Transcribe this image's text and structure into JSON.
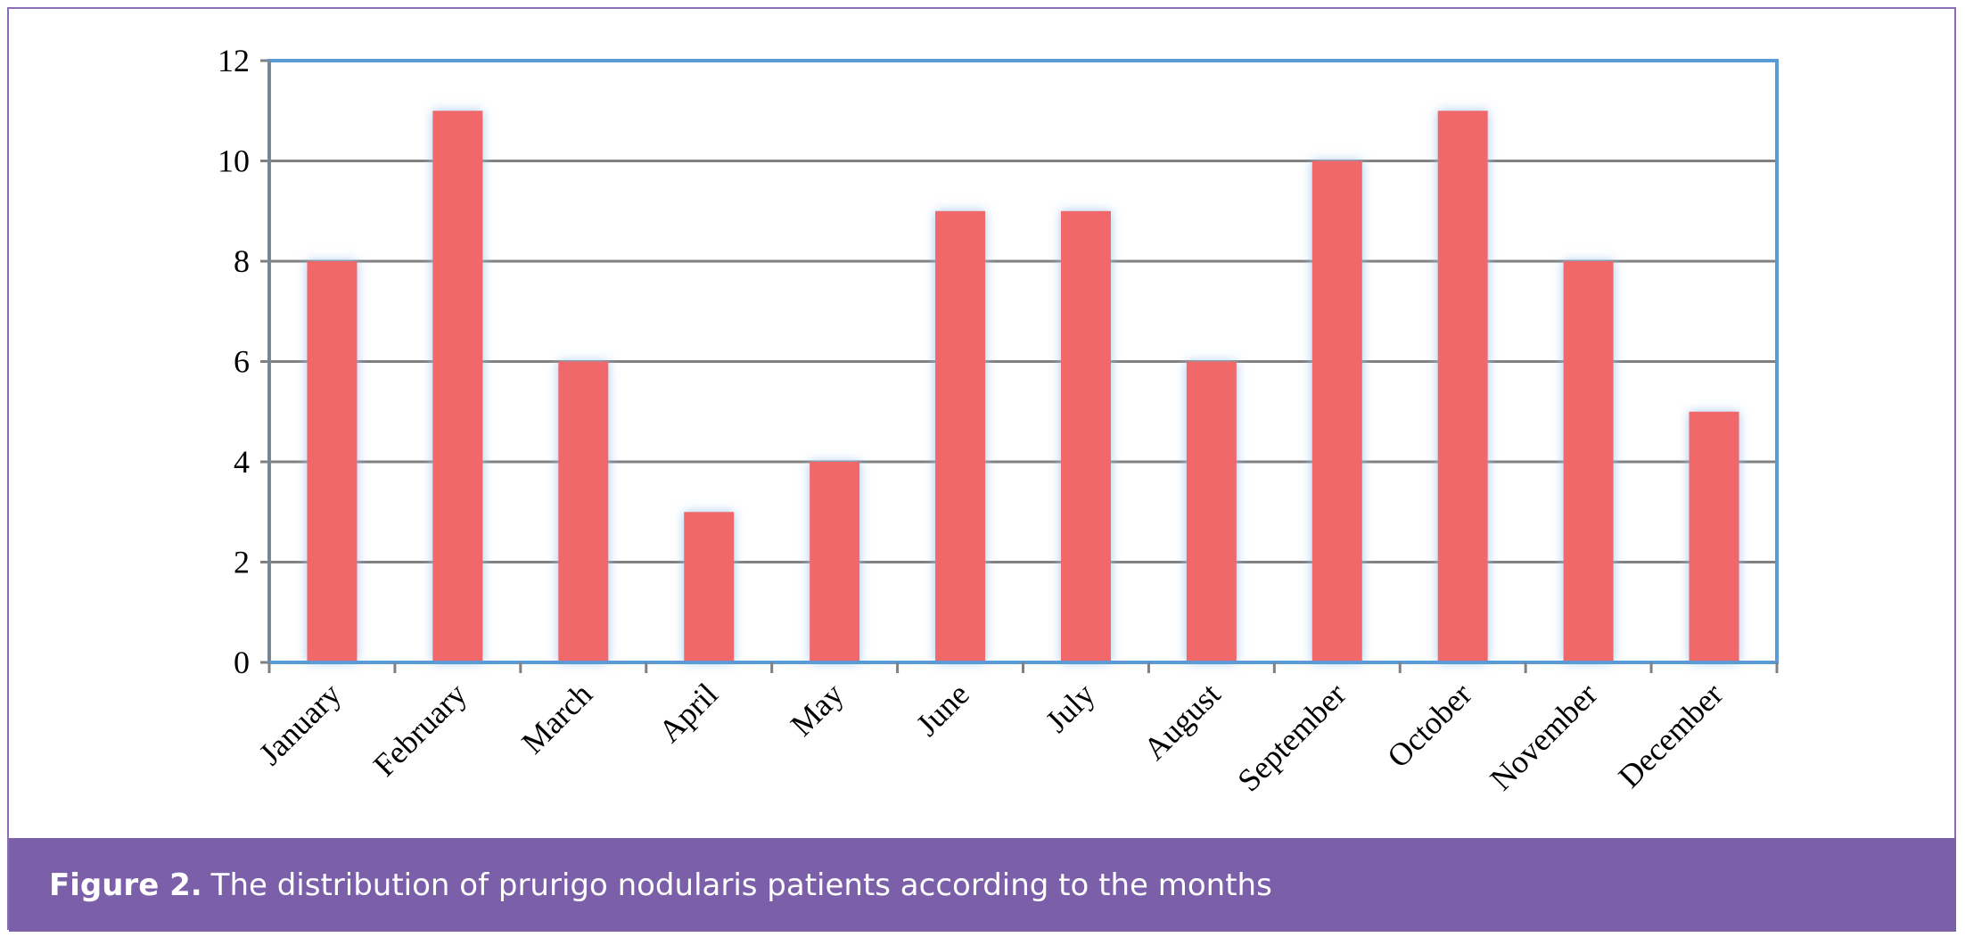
{
  "caption": {
    "label": "Figure 2.",
    "text": "The distribution of prurigo nodularis patients according to the months"
  },
  "colors": {
    "bar": "#f0686b",
    "frame": "#5b9bd5",
    "grid": "#808080",
    "caption_bg": "#7b5fa9"
  },
  "chart_data": {
    "type": "bar",
    "categories": [
      "January",
      "February",
      "March",
      "April",
      "May",
      "June",
      "July",
      "August",
      "September",
      "October",
      "November",
      "December"
    ],
    "values": [
      8,
      11,
      6,
      3,
      4,
      9,
      9,
      6,
      10,
      11,
      8,
      5
    ],
    "yticks": [
      "0",
      "2",
      "4",
      "6",
      "8",
      "10",
      "12"
    ],
    "ylim": [
      0,
      12
    ],
    "grid": true,
    "xlabel": "",
    "ylabel": "",
    "title": ""
  }
}
